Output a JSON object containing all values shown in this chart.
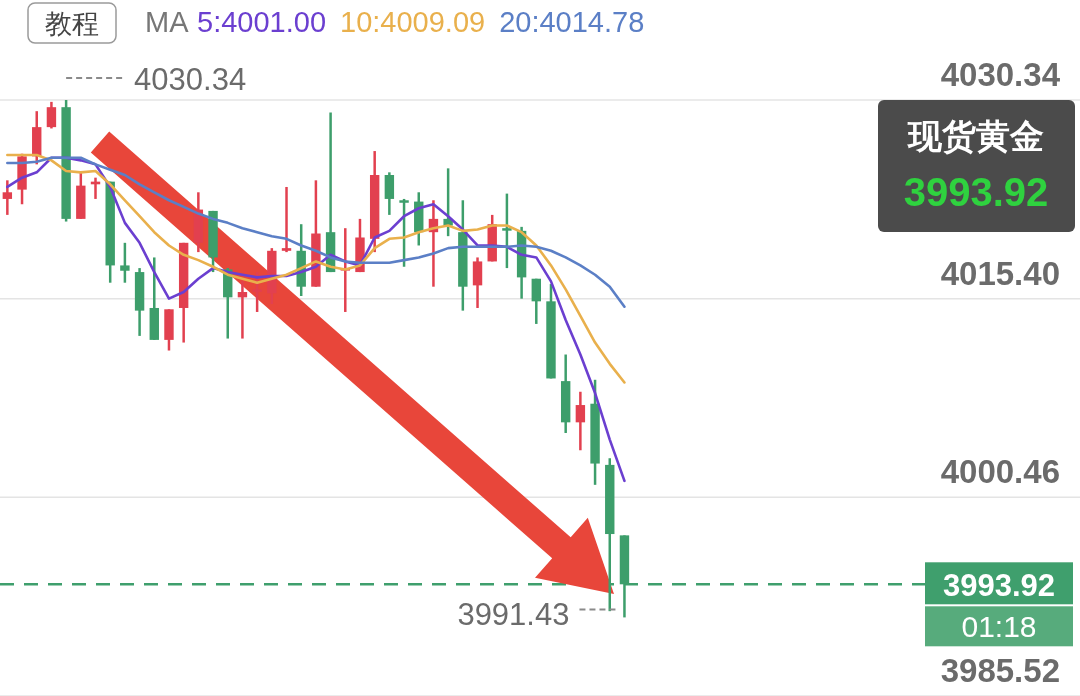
{
  "chart_data": {
    "type": "candlestick",
    "categories": [
      null,
      null,
      null,
      null,
      null,
      null,
      null,
      null,
      null,
      null,
      null,
      null,
      null,
      null,
      null,
      null,
      null,
      null,
      null,
      null,
      null,
      null,
      null,
      null,
      null,
      null,
      null,
      null,
      null,
      null,
      null,
      null,
      null,
      null,
      null,
      null,
      null,
      null,
      null,
      null,
      null,
      null,
      null
    ],
    "ohlc": [
      [
        4022.9,
        4024.3,
        4021.7,
        4023.4
      ],
      [
        4023.6,
        4026.3,
        4022.5,
        4026.1
      ],
      [
        4026.1,
        4029.5,
        4025.5,
        4028.3
      ],
      [
        4028.3,
        4030.2,
        4028.2,
        4029.8
      ],
      [
        4029.8,
        4030.34,
        4021.2,
        4021.4
      ],
      [
        4021.4,
        4025.0,
        4021.4,
        4023.9
      ],
      [
        4024.0,
        4024.5,
        4022.9,
        4024.2
      ],
      [
        4024.2,
        4024.2,
        4016.6,
        4017.9
      ],
      [
        4017.9,
        4019.6,
        4016.6,
        4017.5
      ],
      [
        4017.4,
        4017.7,
        4012.6,
        4014.5
      ],
      [
        4014.7,
        4018.5,
        4012.3,
        4012.3
      ],
      [
        4012.3,
        4014.6,
        4011.5,
        4014.6
      ],
      [
        4014.7,
        4019.6,
        4012.1,
        4019.6
      ],
      [
        4019.6,
        4023.4,
        4018.9,
        4022.1
      ],
      [
        4022.0,
        4022.0,
        4017.4,
        4018.5
      ],
      [
        4017.6,
        4017.7,
        4012.4,
        4015.5
      ],
      [
        4015.5,
        4016.7,
        4012.4,
        4015.9
      ],
      [
        4016.0,
        4017.4,
        4014.4,
        4016.1
      ],
      [
        4015.8,
        4019.2,
        4015.0,
        4019.0
      ],
      [
        4019.0,
        4023.8,
        4018.9,
        4019.2
      ],
      [
        4019.0,
        4021.0,
        4015.6,
        4016.3
      ],
      [
        4016.3,
        4024.3,
        4016.3,
        4020.3
      ],
      [
        4020.4,
        4029.4,
        4017.4,
        4017.4
      ],
      [
        4017.6,
        4020.7,
        4014.4,
        4017.7
      ],
      [
        4017.4,
        4021.4,
        4017.4,
        4020.0
      ],
      [
        4019.9,
        4026.5,
        4018.9,
        4024.7
      ],
      [
        4024.7,
        4024.9,
        4021.7,
        4022.9
      ],
      [
        4022.8,
        4022.9,
        4017.8,
        4022.7
      ],
      [
        4022.7,
        4023.4,
        4019.4,
        4020.4
      ],
      [
        4020.4,
        4022.8,
        4016.3,
        4021.4
      ],
      [
        4021.4,
        4025.2,
        4020.1,
        4020.9
      ],
      [
        4020.4,
        4022.8,
        4014.5,
        4016.3
      ],
      [
        4016.4,
        4018.5,
        4014.7,
        4018.2
      ],
      [
        4018.2,
        4021.7,
        4018.2,
        4021.0
      ],
      [
        4020.7,
        4023.3,
        4017.7,
        4020.6
      ],
      [
        4020.5,
        4020.8,
        4015.4,
        4017.0
      ],
      [
        4016.9,
        4016.9,
        4013.5,
        4015.2
      ],
      [
        4015.2,
        4016.5,
        4009.4,
        4009.4
      ],
      [
        4009.2,
        4011.2,
        4005.3,
        4006.1
      ],
      [
        4006.1,
        4008.4,
        4004.0,
        4007.4
      ],
      [
        4007.5,
        4009.3,
        4001.4,
        4003.0
      ],
      [
        4002.9,
        4003.4,
        3991.9,
        3997.7
      ],
      [
        3997.6,
        3997.6,
        3991.43,
        3993.92
      ]
    ],
    "series": [
      {
        "name": "5:4001.00",
        "type": "line",
        "color": "#6b3fd0",
        "values": [
          4023.8,
          4024.5,
          4024.9,
          4026.0,
          4026.0,
          4025.8,
          4025.5,
          4023.8,
          4021.1,
          4019.6,
          4017.4,
          4015.4,
          4015.9,
          4016.9,
          4017.7,
          4017.4,
          4017.2,
          4017.0,
          4017.1,
          4017.1,
          4017.4,
          4017.8,
          4018.7,
          4018.2,
          4017.9,
          4020.0,
          4020.5,
          4021.6,
          4022.2,
          4022.5,
          4021.6,
          4020.6,
          4019.4,
          4019.4,
          4019.3,
          4018.7,
          4018.5,
          4016.7,
          4013.8,
          4011.2,
          4008.3,
          4004.8,
          4001.7
        ]
      },
      {
        "name": "10:4009.09",
        "type": "line",
        "color": "#e9b04c",
        "values": [
          4026.2,
          4026.2,
          4026.2,
          4025.8,
          4025.0,
          4024.9,
          4025.0,
          4024.0,
          4022.8,
          4021.6,
          4020.4,
          4019.4,
          4018.7,
          4018.3,
          4017.8,
          4017.2,
          4016.9,
          4016.6,
          4016.9,
          4017.2,
          4017.7,
          4018.2,
          4017.8,
          4017.6,
          4017.9,
          4019.2,
          4019.9,
          4020.0,
          4020.4,
          4020.7,
          4020.9,
          4020.5,
          4020.6,
          4020.9,
          4020.9,
          4020.4,
          4019.4,
          4017.9,
          4016.1,
          4014.1,
          4012.1,
          4010.5,
          4009.1
        ]
      },
      {
        "name": "20:4014.78",
        "type": "line",
        "color": "#5b7fc6",
        "values": [
          4025.6,
          4025.6,
          4025.7,
          4026.0,
          4026.0,
          4026.0,
          4025.5,
          4025.1,
          4024.7,
          4024.0,
          4023.4,
          4022.8,
          4022.3,
          4021.8,
          4021.4,
          4021.1,
          4020.7,
          4020.4,
          4020.1,
          4019.9,
          4019.4,
          4019.0,
          4018.5,
          4018.2,
          4018.1,
          4018.1,
          4018.1,
          4018.3,
          4018.5,
          4018.8,
          4019.2,
          4019.3,
          4019.3,
          4019.3,
          4019.3,
          4019.4,
          4019.3,
          4019.0,
          4018.5,
          4017.9,
          4017.2,
          4016.3,
          4014.8
        ]
      }
    ],
    "legend_title": "MA",
    "legend": "top",
    "ylim": [
      3985.52,
      4030.34
    ],
    "yticks": [
      4030.34,
      {
        "value": 4015.4,
        "label": "4015.40"
      },
      4000.46,
      3985.52
    ],
    "grid": "y",
    "ref_lines": [
      {
        "axis": "y",
        "value": 3993.92,
        "label": "3993.92",
        "color": "#3f9f6d",
        "line_style": "dashed"
      }
    ],
    "annotations": [
      "4030.34",
      "3991.43",
      "现货黄金",
      "3993.92",
      "01:18",
      "教程"
    ]
  }
}
